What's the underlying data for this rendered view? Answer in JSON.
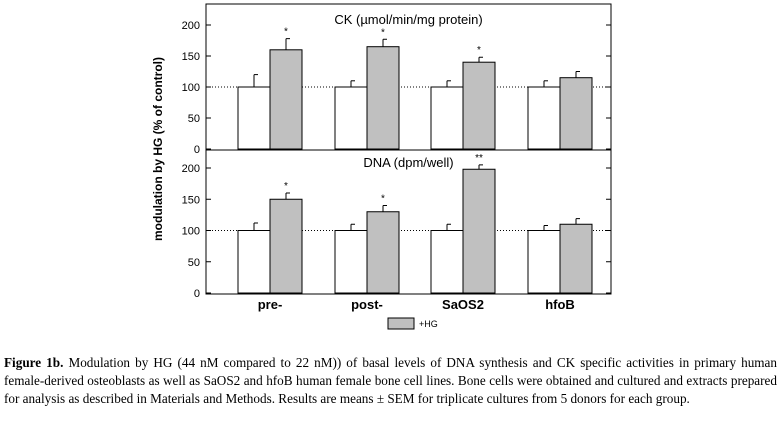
{
  "figure": {
    "y_axis_label": "modulation by HG (% of control)",
    "reference_line": 100,
    "legend_label": "+HG"
  },
  "chart_data": [
    {
      "type": "bar",
      "title": "CK (µmol/min/mg protein)",
      "categories": [
        "pre-",
        "post-",
        "SaOS2",
        "hfoB"
      ],
      "ylim": [
        0,
        225
      ],
      "yticks": [
        0,
        50,
        100,
        150,
        200
      ],
      "series": [
        {
          "values": [
            100,
            100,
            100,
            100
          ],
          "errors": [
            20,
            10,
            10,
            10
          ],
          "color": "#ffffff"
        },
        {
          "name": "+HG",
          "values": [
            160,
            165,
            140,
            115
          ],
          "errors": [
            18,
            12,
            8,
            10
          ],
          "color": "#c0c0c0"
        }
      ],
      "significance": [
        "*",
        "*",
        "*",
        ""
      ]
    },
    {
      "type": "bar",
      "title": "DNA (dpm/well)",
      "categories": [
        "pre-",
        "post-",
        "SaOS2",
        "hfoB"
      ],
      "ylim": [
        0,
        215
      ],
      "yticks": [
        0,
        50,
        100,
        150,
        200
      ],
      "series": [
        {
          "values": [
            100,
            100,
            100,
            100
          ],
          "errors": [
            12,
            10,
            10,
            8
          ],
          "color": "#ffffff"
        },
        {
          "name": "+HG",
          "values": [
            150,
            130,
            198,
            110
          ],
          "errors": [
            10,
            10,
            7,
            9
          ],
          "color": "#c0c0c0"
        }
      ],
      "significance": [
        "*",
        "*",
        "**",
        ""
      ]
    }
  ],
  "caption": {
    "label": "Figure 1b.",
    "text": " Modulation by HG (44 nM compared to 22 nM)) of basal levels of DNA synthesis and CK specific activities in primary human female-derived osteoblasts as well as SaOS2 and hfoB human female bone cell lines. Bone cells were obtained and cultured and extracts prepared for analysis as described in Materials and Methods. Results are means ± SEM for triplicate cultures from 5 donors for each group."
  }
}
